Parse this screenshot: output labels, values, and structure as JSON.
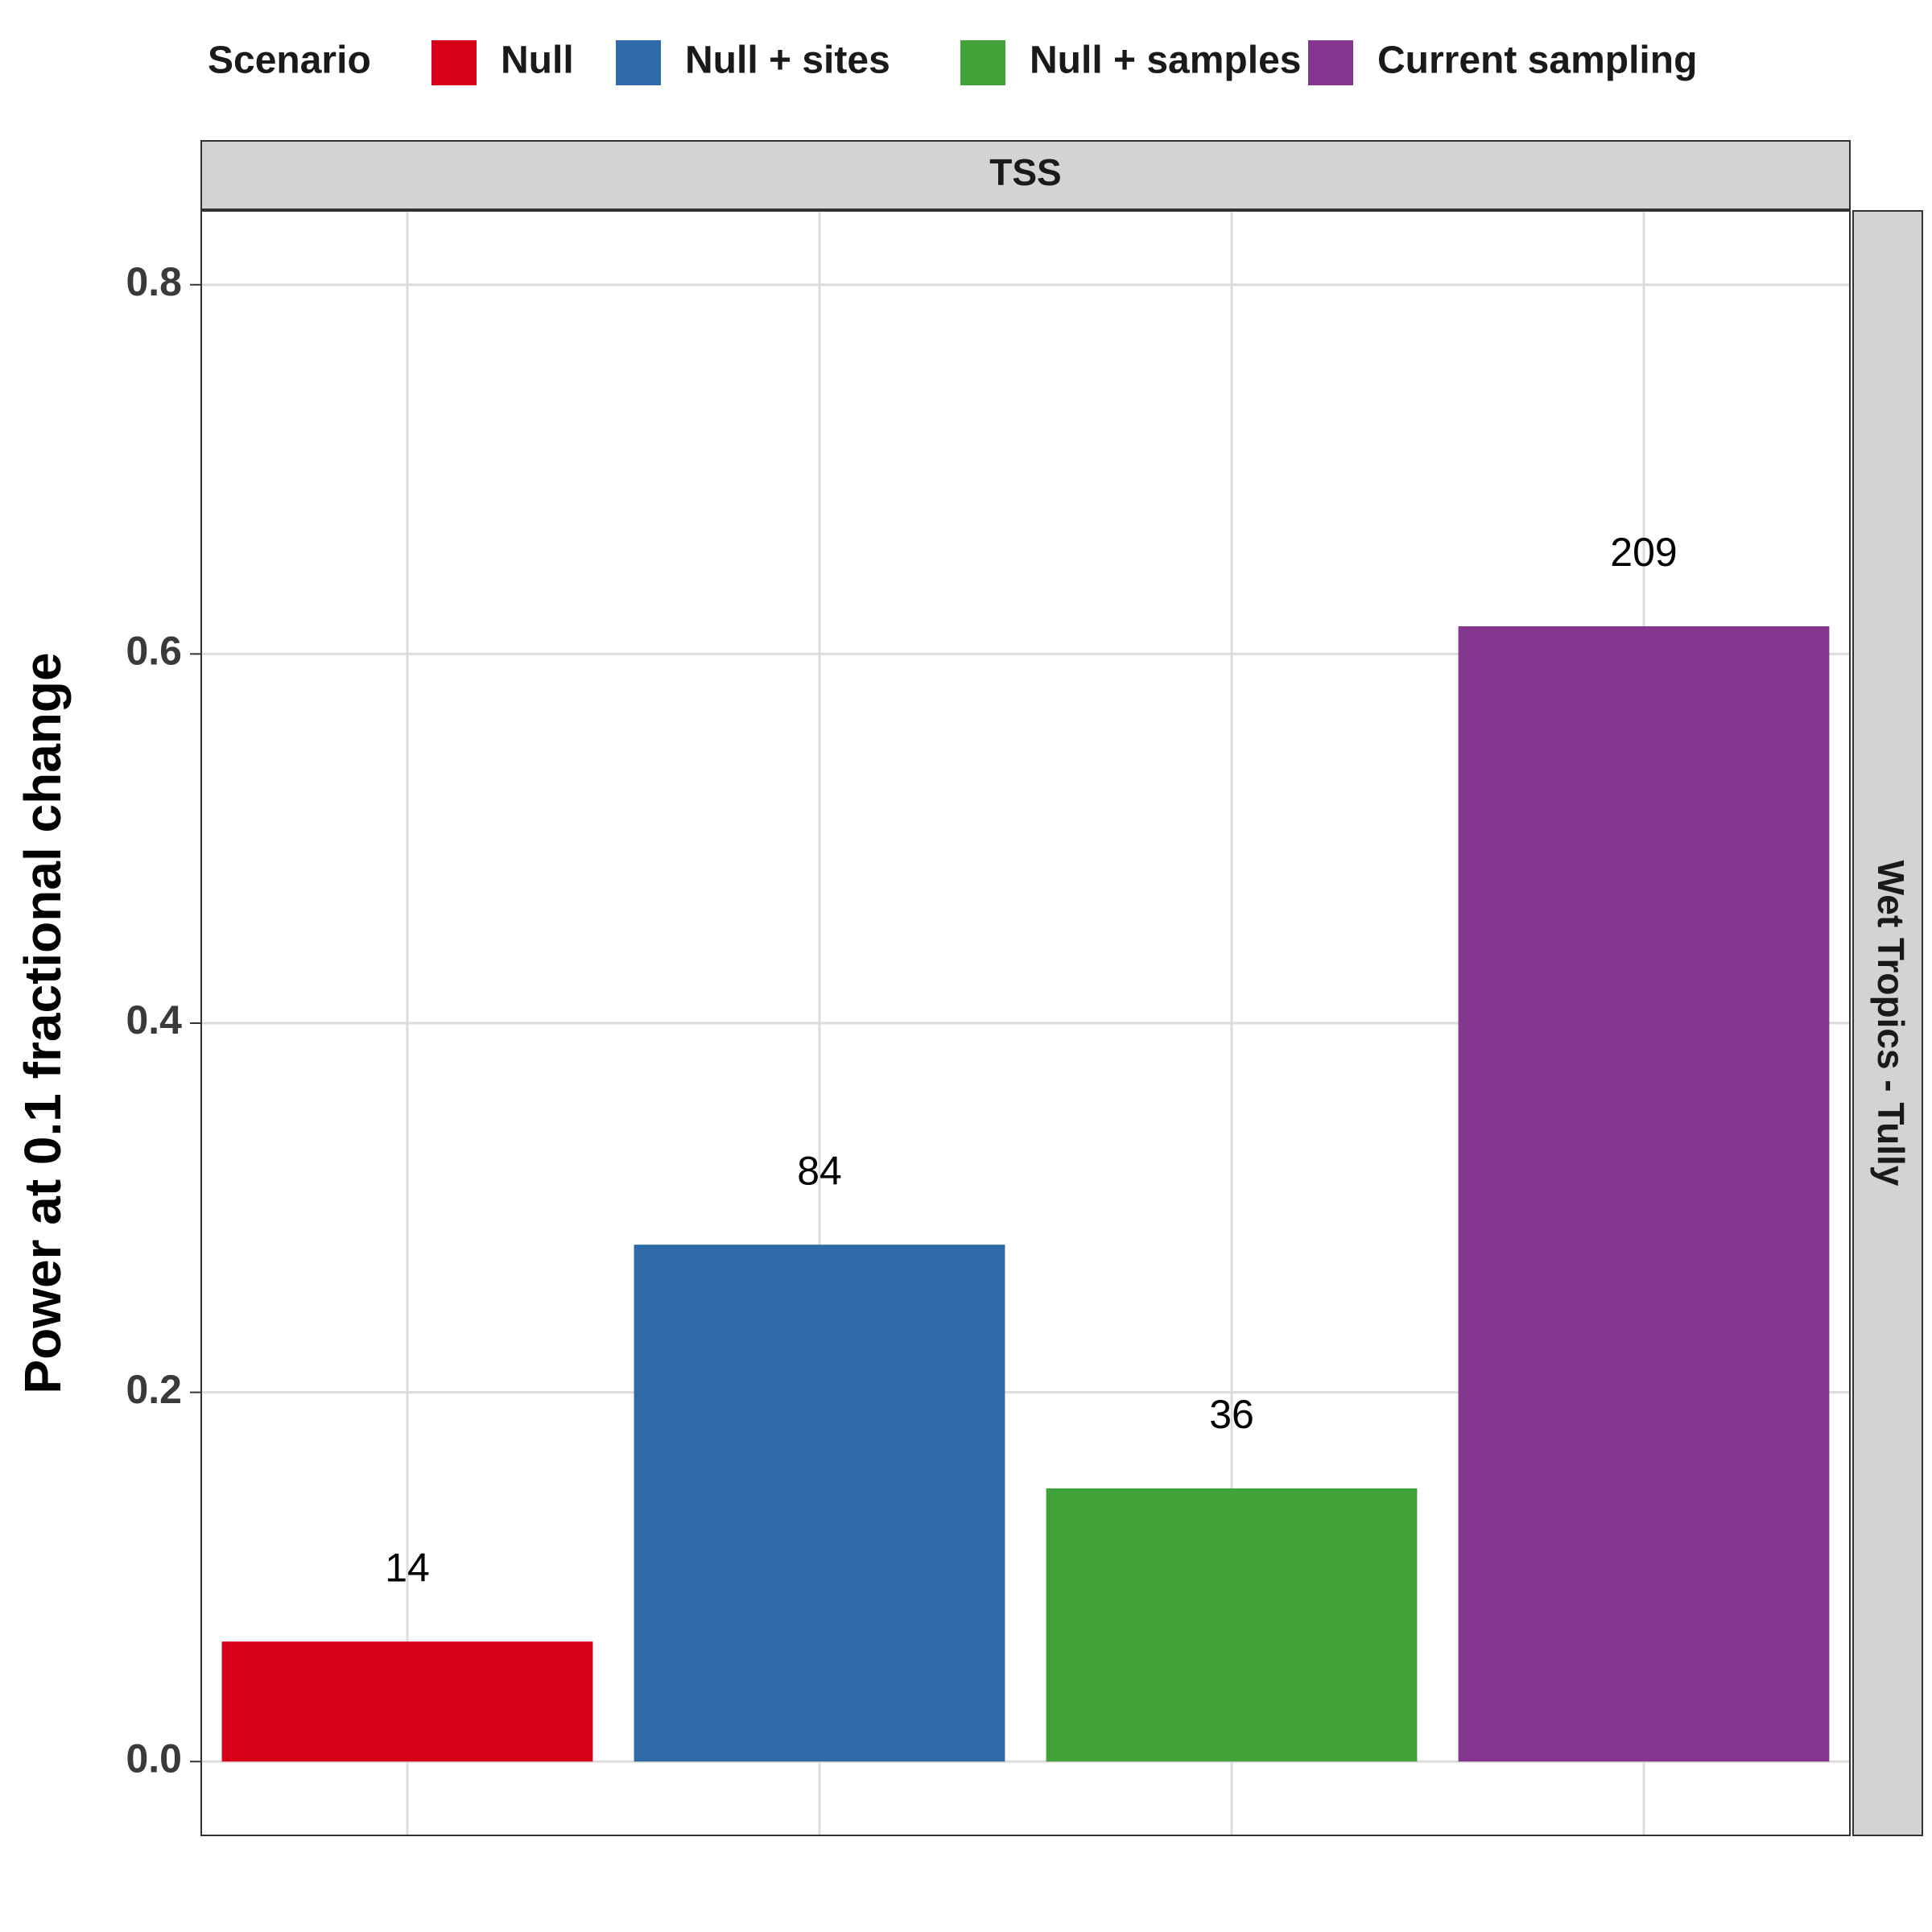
{
  "chart_data": {
    "type": "bar",
    "legend": {
      "title": "Scenario",
      "placement": "top",
      "entries": [
        {
          "label": "Null",
          "color": "#d7001a"
        },
        {
          "label": "Null + sites",
          "color": "#2d6aa7"
        },
        {
          "label": "Null + samples",
          "color": "#42a23a"
        },
        {
          "label": "Current sampling",
          "color": "#85378f"
        }
      ]
    },
    "facet_top": "TSS",
    "facet_right": "Wet Tropics - Tully",
    "ylabel": "Power at 0.1 fractional change",
    "xlabel": "",
    "ylim": [
      -0.04,
      0.84
    ],
    "yticks": [
      0.0,
      0.2,
      0.4,
      0.6,
      0.8
    ],
    "ytick_labels": [
      "0.0",
      "0.2",
      "0.4",
      "0.6",
      "0.8"
    ],
    "grid": true,
    "categories": [
      "Null",
      "Null + sites",
      "Null + samples",
      "Current sampling"
    ],
    "values": [
      0.065,
      0.28,
      0.148,
      0.615
    ],
    "bar_labels": [
      "14",
      "84",
      "36",
      "209"
    ],
    "colors": [
      "#d7001a",
      "#2d6aa7",
      "#42a23a",
      "#85378f"
    ]
  }
}
